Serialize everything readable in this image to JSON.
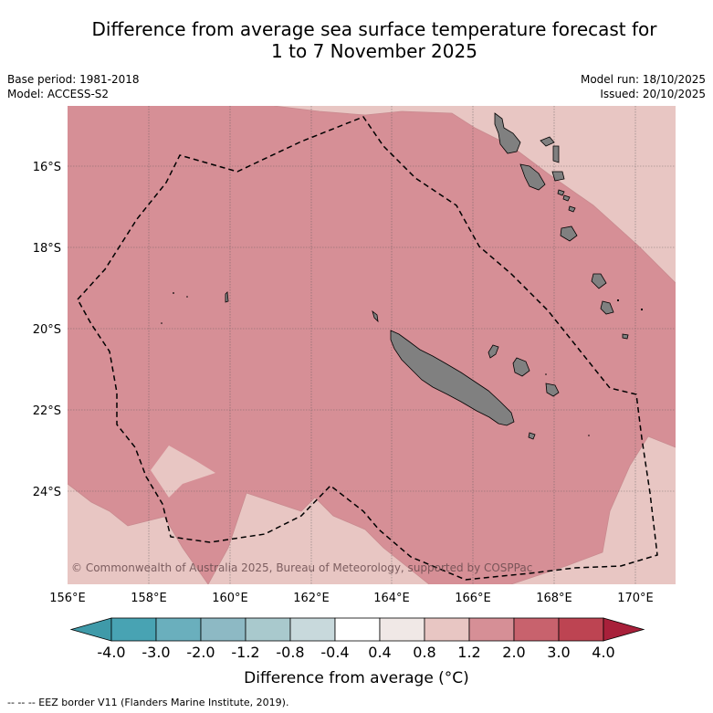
{
  "title_line1": "Difference from average sea surface temperature forecast for",
  "title_line2": "1 to 7 November 2025",
  "base_period": "Base period: 1981-2018",
  "model": "Model: ACCESS-S2",
  "model_run": "Model run: 18/10/2025",
  "issued": "Issued: 20/10/2025",
  "copyright": "© Commonwealth of Australia 2025, Bureau of Meteorology, supported by COSPPac",
  "lat_labels": [
    "16°S",
    "18°S",
    "20°S",
    "22°S",
    "24°S"
  ],
  "lon_labels": [
    "156°E",
    "158°E",
    "160°E",
    "162°E",
    "164°E",
    "166°E",
    "168°E",
    "170°E"
  ],
  "colorbar": {
    "ticks": [
      "-4.0",
      "-3.0",
      "-2.0",
      "-1.2",
      "-0.8",
      "-0.4",
      "0.4",
      "0.8",
      "1.2",
      "2.0",
      "3.0",
      "4.0"
    ],
    "colors": [
      "#3f9aa9",
      "#48a3b3",
      "#6aafbd",
      "#8db9c4",
      "#a9c9cd",
      "#c8d9dc",
      "#ffffff",
      "#f0e8e6",
      "#e8c6c3",
      "#d68f96",
      "#c8626d",
      "#bd4452",
      "#a8203a"
    ],
    "label": "Difference from average (°C)"
  },
  "legend_footer": "-- -- -- EEZ border V11 (Flanders Marine Institute, 2019).",
  "fill_colors": {
    "warm_1_2_to_2_0": "#d68f96",
    "warm_0_8_to_1_2": "#e8c6c3",
    "land": "#808080"
  }
}
